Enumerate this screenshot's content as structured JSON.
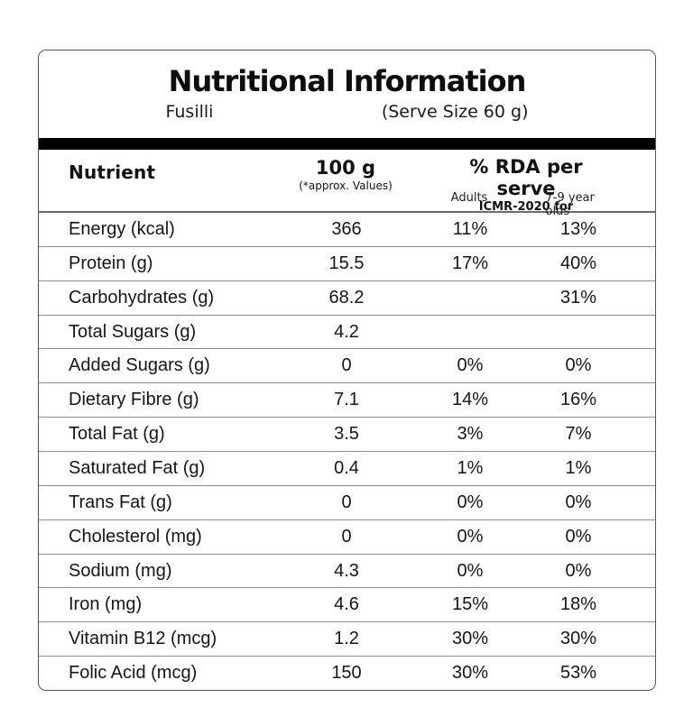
{
  "header": {
    "title": "Nutritional Information",
    "product_name": "Fusilli",
    "serve_size": "(Serve Size 60 g)"
  },
  "columns": {
    "nutrient_label": "Nutrient",
    "per_100g_label": "100 g",
    "per_100g_note": "(*approx. Values)",
    "rda_label": "% RDA per serve",
    "rda_note": "ICMR-2020 for",
    "adults_label": "Adults",
    "children_label": "7-9 year olds"
  },
  "rows": [
    {
      "nutrient": "Energy (kcal)",
      "per_100g": "366",
      "adults": "11%",
      "children": "13%"
    },
    {
      "nutrient": "Protein (g)",
      "per_100g": "15.5",
      "adults": "17%",
      "children": "40%"
    },
    {
      "nutrient": "Carbohydrates (g)",
      "per_100g": "68.2",
      "adults": "",
      "children": "31%"
    },
    {
      "nutrient": "Total Sugars (g)",
      "per_100g": "4.2",
      "adults": "",
      "children": ""
    },
    {
      "nutrient": "Added Sugars (g)",
      "per_100g": "0",
      "adults": "0%",
      "children": "0%"
    },
    {
      "nutrient": "Dietary Fibre (g)",
      "per_100g": "7.1",
      "adults": "14%",
      "children": "16%"
    },
    {
      "nutrient": "Total Fat (g)",
      "per_100g": "3.5",
      "adults": "3%",
      "children": "7%"
    },
    {
      "nutrient": "Saturated Fat (g)",
      "per_100g": "0.4",
      "adults": "1%",
      "children": "1%"
    },
    {
      "nutrient": "Trans Fat (g)",
      "per_100g": "0",
      "adults": "0%",
      "children": "0%"
    },
    {
      "nutrient": "Cholesterol (mg)",
      "per_100g": "0",
      "adults": "0%",
      "children": "0%"
    },
    {
      "nutrient": "Sodium (mg)",
      "per_100g": "4.3",
      "adults": "0%",
      "children": "0%"
    },
    {
      "nutrient": "Iron (mg)",
      "per_100g": "4.6",
      "adults": "15%",
      "children": "18%"
    },
    {
      "nutrient": "Vitamin B12 (mcg)",
      "per_100g": "1.2",
      "adults": "30%",
      "children": "30%"
    },
    {
      "nutrient": "Folic Acid (mcg)",
      "per_100g": "150",
      "adults": "30%",
      "children": "53%"
    }
  ],
  "colors": {
    "text": "#111111",
    "divider_bar": "#000000",
    "row_separator": "#8f8f8f",
    "outer_border": "#555555",
    "background": "#ffffff"
  }
}
